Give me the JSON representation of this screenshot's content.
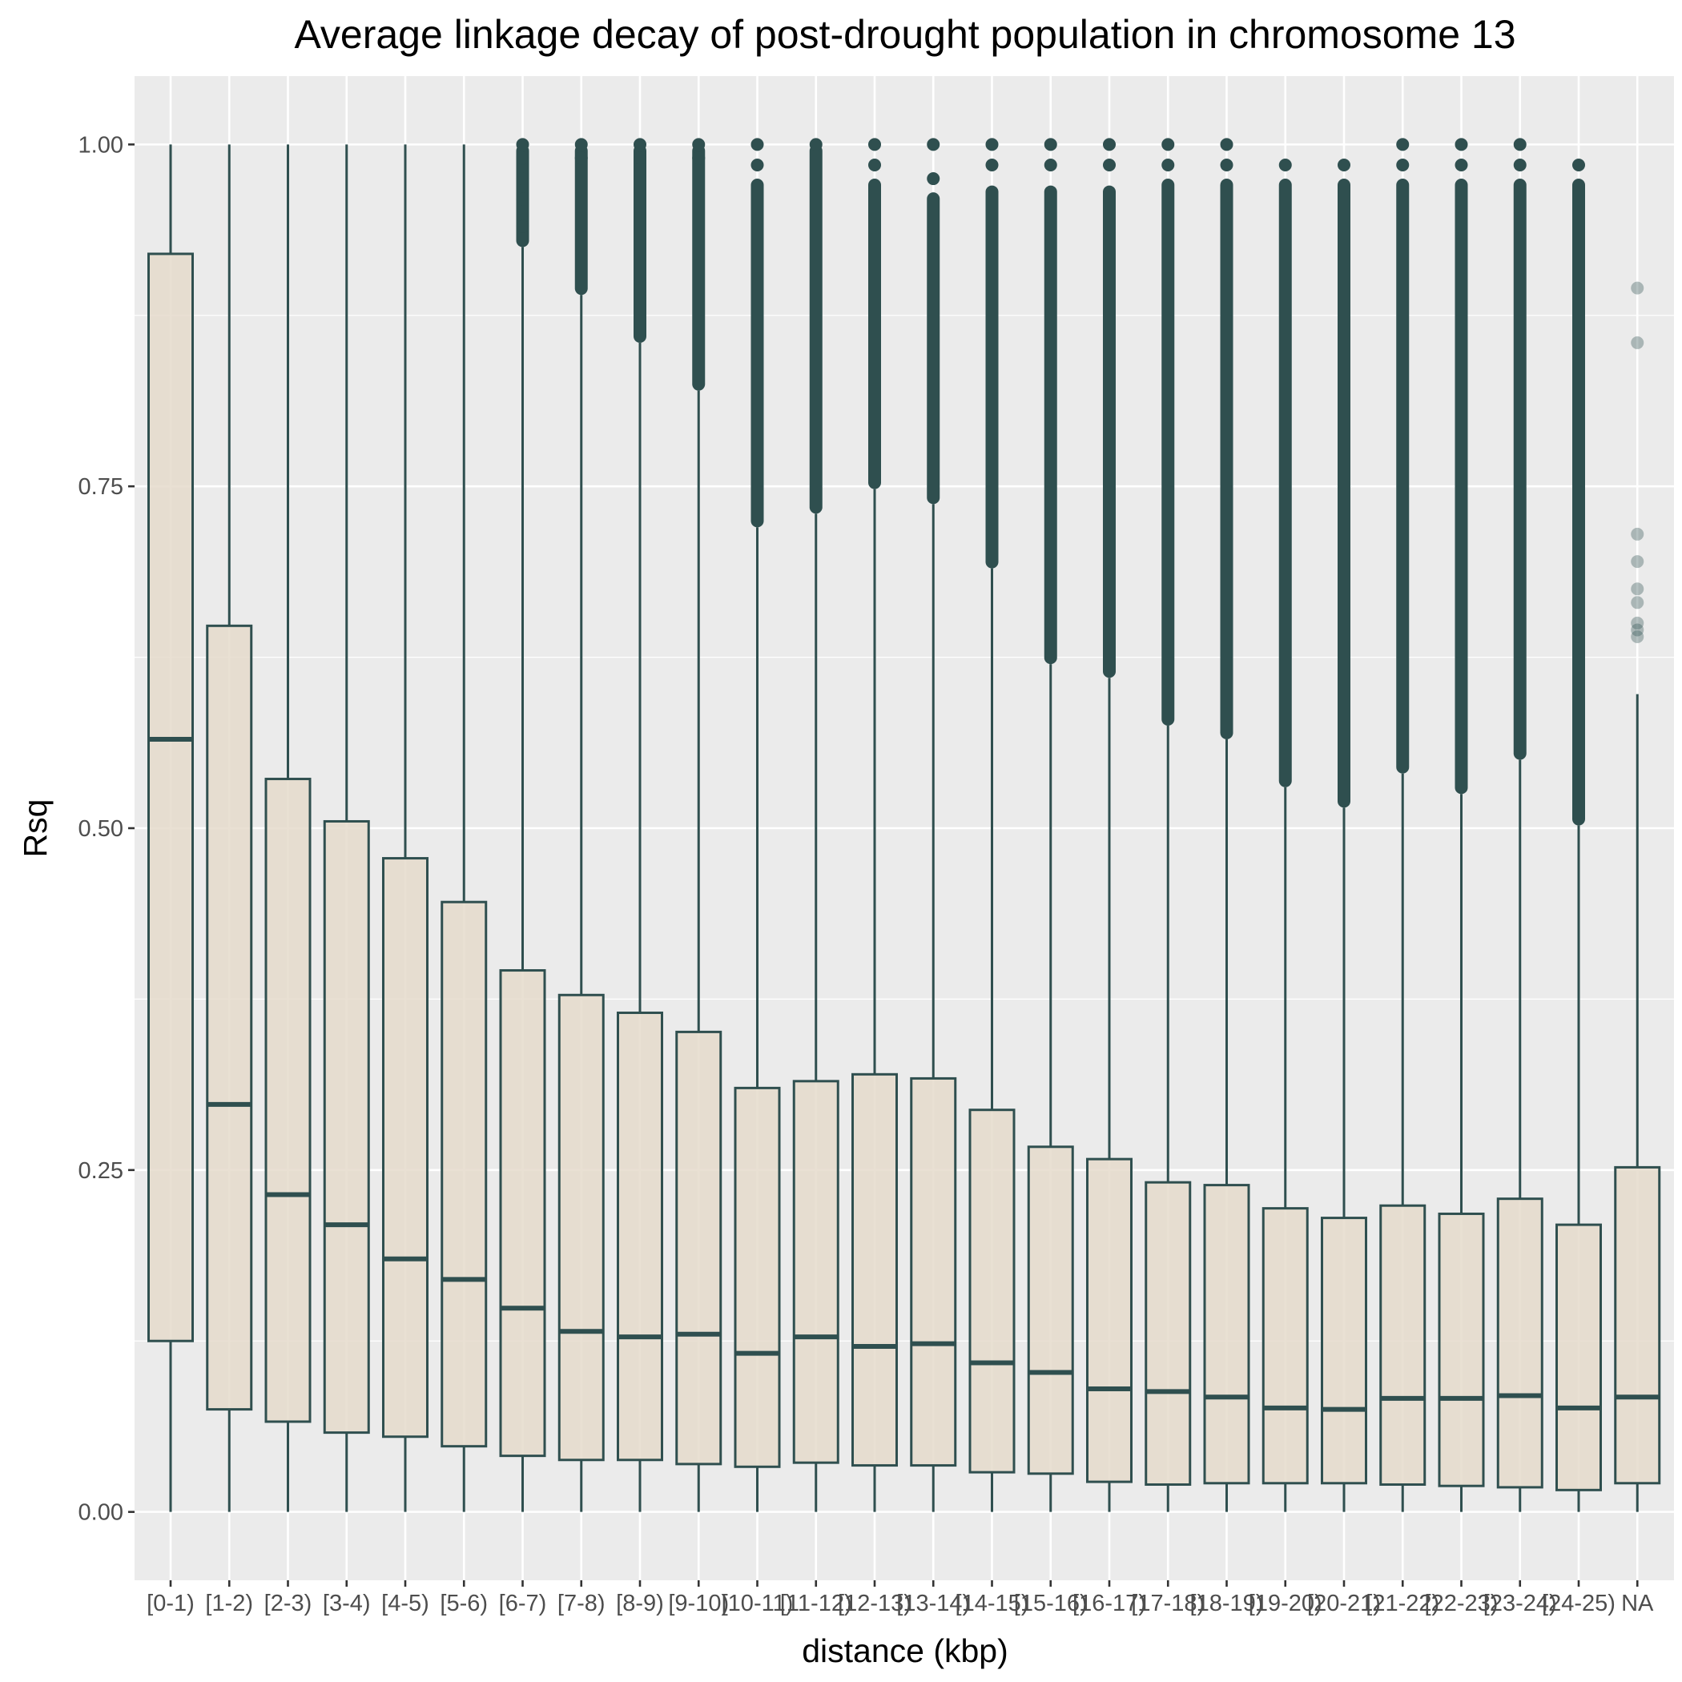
{
  "chart_data": {
    "type": "boxplot",
    "title": "Average linkage decay of post-drought population in chromosome  13",
    "xlabel": "distance (kbp)",
    "ylabel": "Rsq",
    "ylim": [
      -0.05,
      1.05
    ],
    "yticks": [
      0.0,
      0.25,
      0.5,
      0.75,
      1.0
    ],
    "ytick_labels": [
      "0.00",
      "0.25",
      "0.50",
      "0.75",
      "1.00"
    ],
    "grid": true,
    "legend": "none",
    "colors": {
      "panel_background": "#EBEBEB",
      "grid_line": "#FFFFFF",
      "box_fill": "#E5DACB",
      "box_outline": "#2F4F4F",
      "outlier": "#2F4F4F"
    },
    "categories": [
      "[0-1)",
      "[1-2)",
      "[2-3)",
      "[3-4)",
      "[4-5)",
      "[5-6)",
      "[6-7)",
      "[7-8)",
      "[8-9)",
      "[9-10)",
      "[10-11)",
      "[11-12)",
      "[12-13)",
      "[13-14)",
      "[14-15)",
      "[15-16)",
      "[16-17)",
      "[17-18)",
      "[18-19)",
      "[19-20)",
      "[20-21)",
      "[21-22)",
      "[22-23)",
      "[23-24)",
      "[24-25)",
      "NA"
    ],
    "boxes": [
      {
        "category": "[0-1)",
        "whisker_low": 0.0,
        "q1": 0.125,
        "median": 0.565,
        "q3": 0.92,
        "whisker_high": 1.0,
        "outliers": []
      },
      {
        "category": "[1-2)",
        "whisker_low": 0.0,
        "q1": 0.075,
        "median": 0.298,
        "q3": 0.648,
        "whisker_high": 1.0,
        "outliers": []
      },
      {
        "category": "[2-3)",
        "whisker_low": 0.0,
        "q1": 0.066,
        "median": 0.232,
        "q3": 0.536,
        "whisker_high": 1.0,
        "outliers": []
      },
      {
        "category": "[3-4)",
        "whisker_low": 0.0,
        "q1": 0.058,
        "median": 0.21,
        "q3": 0.505,
        "whisker_high": 1.0,
        "outliers": []
      },
      {
        "category": "[4-5)",
        "whisker_low": 0.0,
        "q1": 0.055,
        "median": 0.185,
        "q3": 0.478,
        "whisker_high": 1.0,
        "outliers": []
      },
      {
        "category": "[5-6)",
        "whisker_low": 0.0,
        "q1": 0.048,
        "median": 0.17,
        "q3": 0.446,
        "whisker_high": 1.0,
        "outliers": []
      },
      {
        "category": "[6-7)",
        "whisker_low": 0.0,
        "q1": 0.041,
        "median": 0.149,
        "q3": 0.396,
        "whisker_high": 0.925,
        "outlier_range": [
          0.925,
          1.0
        ],
        "outliers": [
          0.94,
          0.96,
          0.975,
          0.99,
          1.0
        ]
      },
      {
        "category": "[7-8)",
        "whisker_low": 0.0,
        "q1": 0.038,
        "median": 0.132,
        "q3": 0.378,
        "whisker_high": 0.89,
        "outlier_range": [
          0.89,
          1.0
        ],
        "outliers": [
          0.99,
          1.0
        ]
      },
      {
        "category": "[8-9)",
        "whisker_low": 0.0,
        "q1": 0.038,
        "median": 0.128,
        "q3": 0.365,
        "whisker_high": 0.855,
        "outlier_range": [
          0.855,
          1.0
        ],
        "outliers": [
          0.99,
          1.0
        ]
      },
      {
        "category": "[9-10)",
        "whisker_low": 0.0,
        "q1": 0.035,
        "median": 0.13,
        "q3": 0.351,
        "whisker_high": 0.82,
        "outlier_range": [
          0.82,
          1.0
        ],
        "outliers": [
          0.99,
          1.0
        ]
      },
      {
        "category": "[10-11)",
        "whisker_low": 0.0,
        "q1": 0.033,
        "median": 0.116,
        "q3": 0.31,
        "whisker_high": 0.72,
        "outlier_range": [
          0.72,
          0.975
        ],
        "outliers": [
          0.985,
          1.0
        ]
      },
      {
        "category": "[11-12)",
        "whisker_low": 0.0,
        "q1": 0.036,
        "median": 0.128,
        "q3": 0.315,
        "whisker_high": 0.73,
        "outlier_range": [
          0.73,
          1.0
        ],
        "outliers": [
          1.0
        ]
      },
      {
        "category": "[12-13)",
        "whisker_low": 0.0,
        "q1": 0.034,
        "median": 0.121,
        "q3": 0.32,
        "whisker_high": 0.748,
        "outlier_range": [
          0.748,
          0.975
        ],
        "outliers": [
          0.985,
          1.0
        ]
      },
      {
        "category": "[13-14)",
        "whisker_low": 0.0,
        "q1": 0.034,
        "median": 0.123,
        "q3": 0.317,
        "whisker_high": 0.737,
        "outlier_range": [
          0.737,
          0.965
        ],
        "outliers": [
          0.975,
          1.0
        ]
      },
      {
        "category": "[14-15)",
        "whisker_low": 0.0,
        "q1": 0.029,
        "median": 0.109,
        "q3": 0.294,
        "whisker_high": 0.69,
        "outlier_range": [
          0.69,
          0.97
        ],
        "outliers": [
          0.985,
          1.0
        ]
      },
      {
        "category": "[15-16)",
        "whisker_low": 0.0,
        "q1": 0.028,
        "median": 0.102,
        "q3": 0.267,
        "whisker_high": 0.62,
        "outlier_range": [
          0.62,
          0.97
        ],
        "outliers": [
          0.985,
          1.0
        ]
      },
      {
        "category": "[16-17)",
        "whisker_low": 0.0,
        "q1": 0.022,
        "median": 0.09,
        "q3": 0.258,
        "whisker_high": 0.61,
        "outlier_range": [
          0.61,
          0.97
        ],
        "outliers": [
          0.985,
          1.0
        ]
      },
      {
        "category": "[17-18)",
        "whisker_low": 0.0,
        "q1": 0.02,
        "median": 0.088,
        "q3": 0.241,
        "whisker_high": 0.575,
        "outlier_range": [
          0.575,
          0.975
        ],
        "outliers": [
          0.985,
          1.0
        ]
      },
      {
        "category": "[18-19)",
        "whisker_low": 0.0,
        "q1": 0.021,
        "median": 0.084,
        "q3": 0.239,
        "whisker_high": 0.565,
        "outlier_range": [
          0.565,
          0.975
        ],
        "outliers": [
          0.985,
          1.0
        ]
      },
      {
        "category": "[19-20)",
        "whisker_low": 0.0,
        "q1": 0.021,
        "median": 0.076,
        "q3": 0.222,
        "whisker_high": 0.53,
        "outlier_range": [
          0.53,
          0.975
        ],
        "outliers": [
          0.985
        ]
      },
      {
        "category": "[20-21)",
        "whisker_low": 0.0,
        "q1": 0.021,
        "median": 0.075,
        "q3": 0.215,
        "whisker_high": 0.515,
        "outlier_range": [
          0.515,
          0.975
        ],
        "outliers": [
          0.985
        ]
      },
      {
        "category": "[21-22)",
        "whisker_low": 0.0,
        "q1": 0.02,
        "median": 0.083,
        "q3": 0.224,
        "whisker_high": 0.54,
        "outlier_range": [
          0.54,
          0.975
        ],
        "outliers": [
          0.985,
          1.0
        ]
      },
      {
        "category": "[22-23)",
        "whisker_low": 0.0,
        "q1": 0.019,
        "median": 0.083,
        "q3": 0.218,
        "whisker_high": 0.525,
        "outlier_range": [
          0.525,
          0.975
        ],
        "outliers": [
          0.985,
          1.0
        ]
      },
      {
        "category": "[23-24)",
        "whisker_low": 0.0,
        "q1": 0.018,
        "median": 0.085,
        "q3": 0.229,
        "whisker_high": 0.55,
        "outlier_range": [
          0.55,
          0.975
        ],
        "outliers": [
          0.985,
          1.0
        ]
      },
      {
        "category": "[24-25)",
        "whisker_low": 0.0,
        "q1": 0.016,
        "median": 0.076,
        "q3": 0.21,
        "whisker_high": 0.502,
        "outlier_range": [
          0.502,
          0.975
        ],
        "outliers": [
          0.985
        ]
      },
      {
        "category": "NA",
        "whisker_low": 0.0,
        "q1": 0.021,
        "median": 0.084,
        "q3": 0.252,
        "whisker_high": 0.598,
        "outliers": [
          0.895,
          0.855,
          0.715,
          0.695,
          0.675,
          0.665,
          0.65,
          0.645,
          0.64
        ]
      }
    ]
  }
}
